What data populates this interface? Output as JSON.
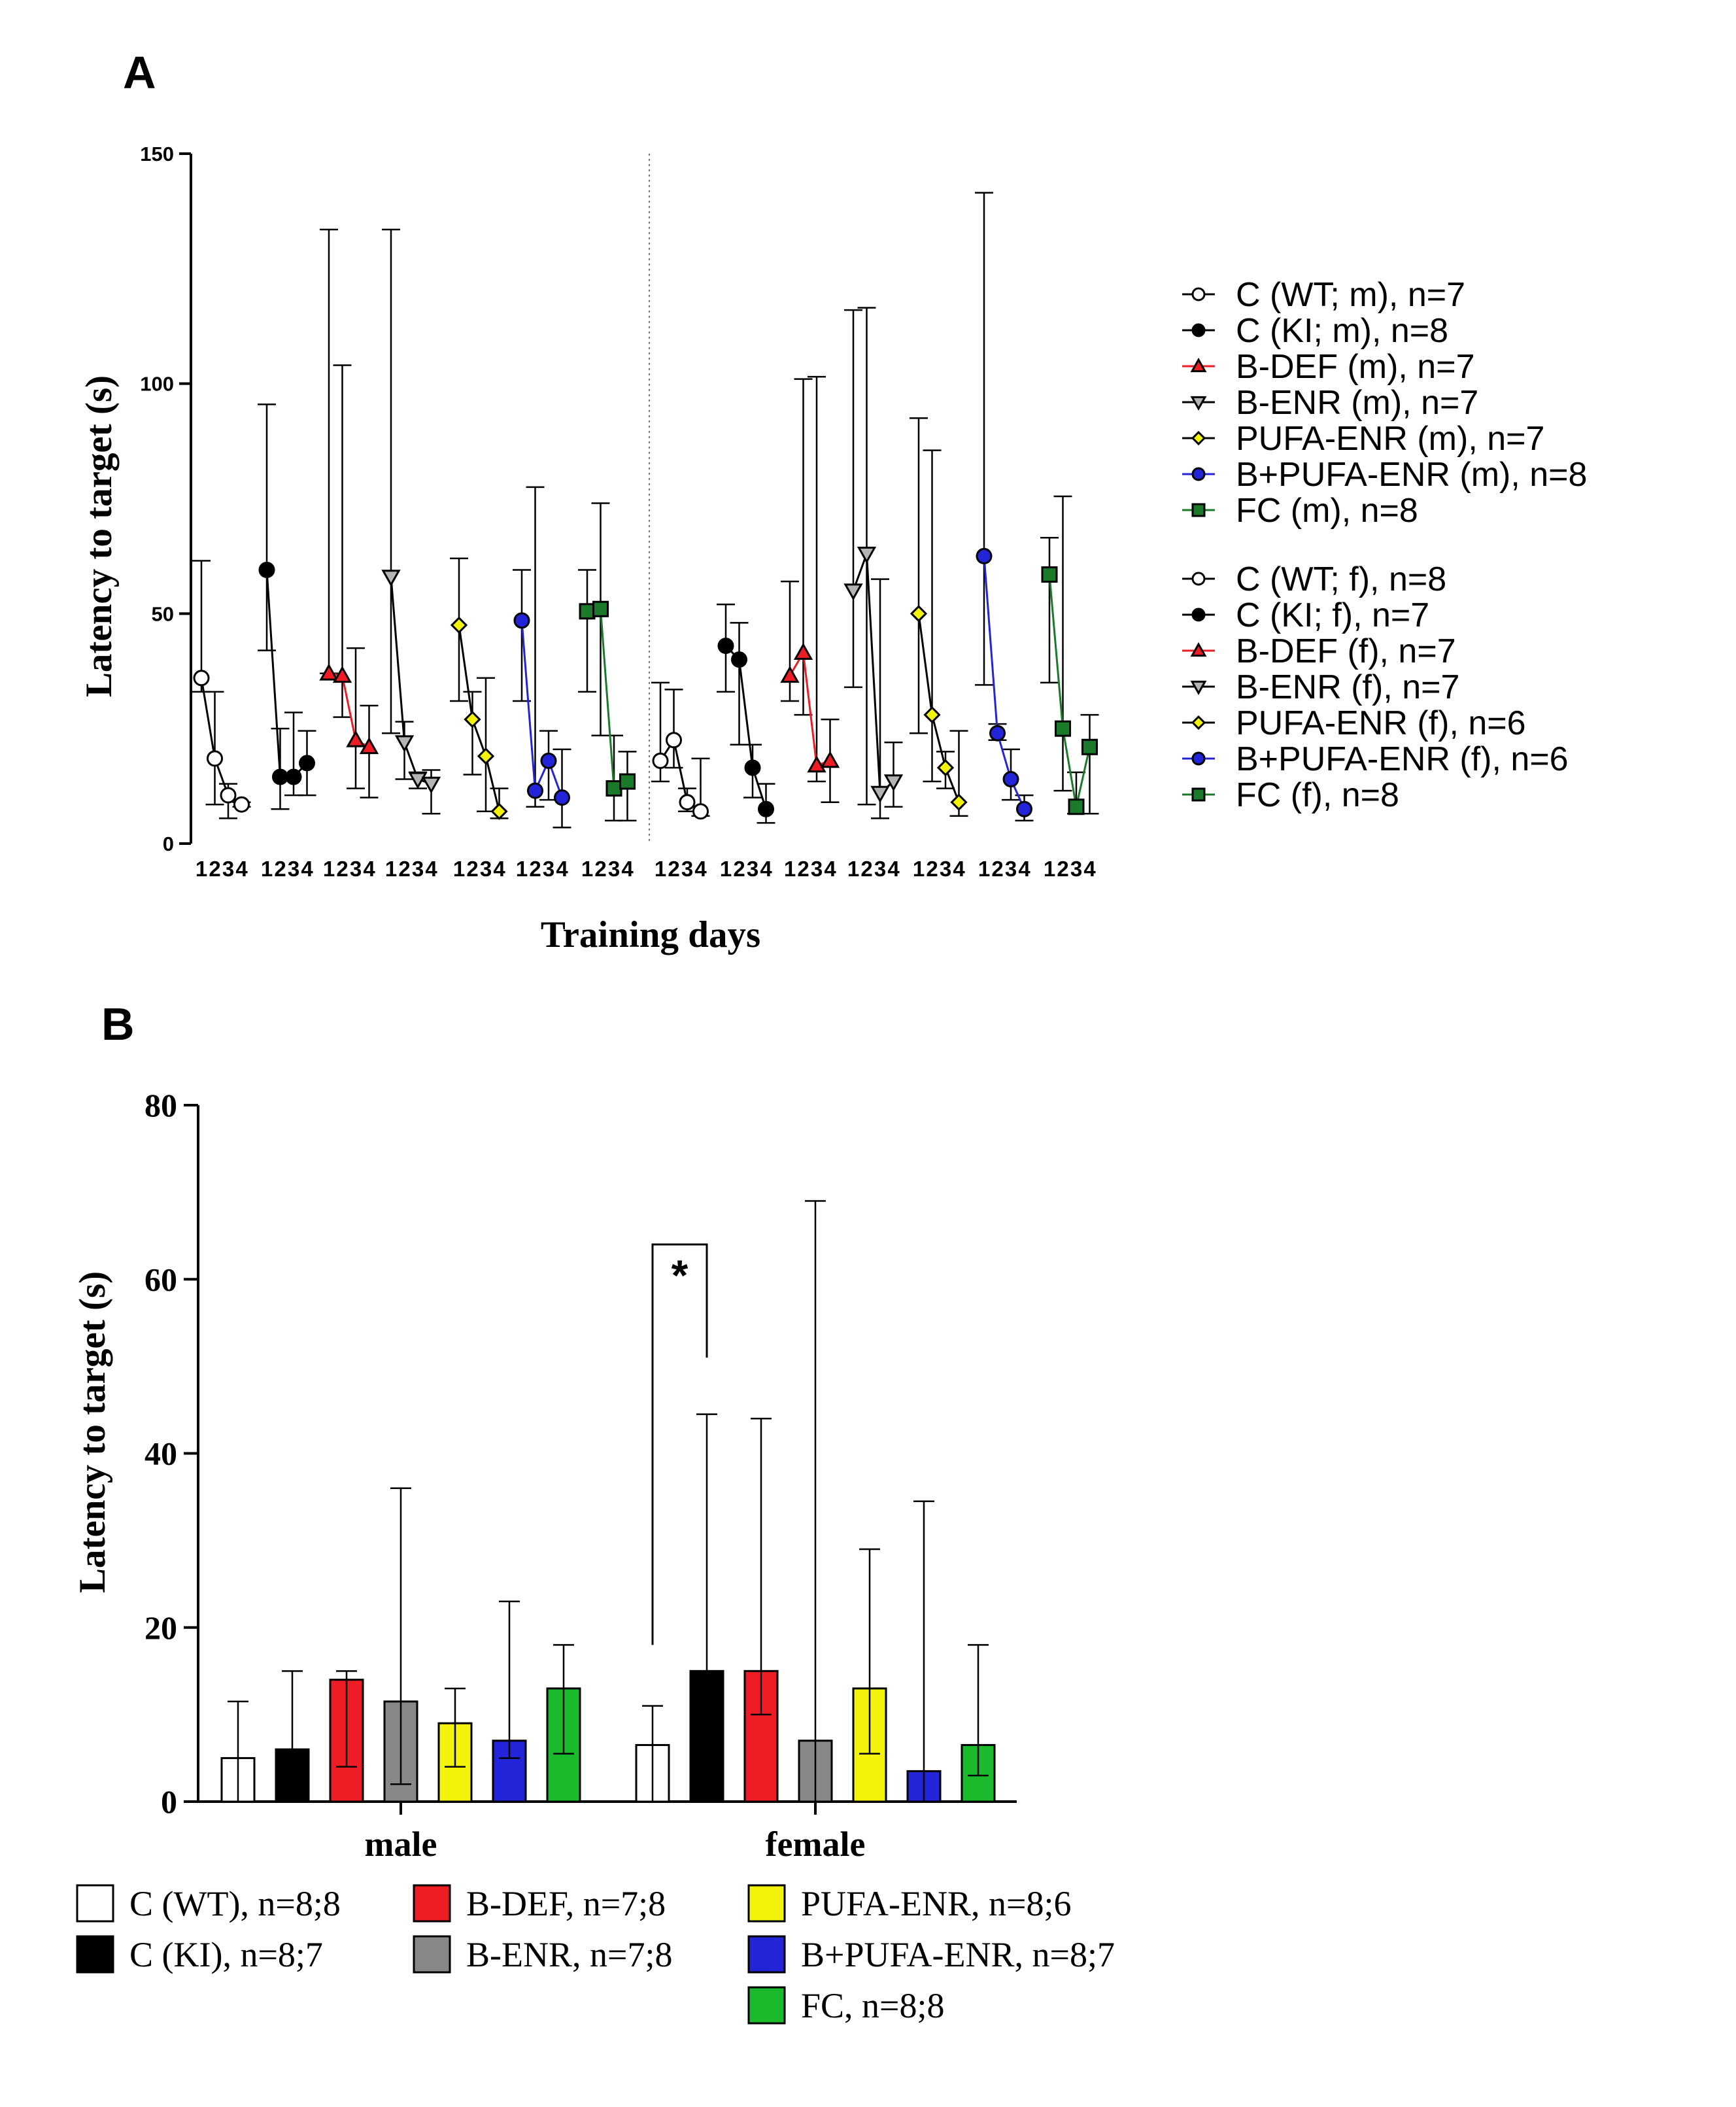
{
  "chart_data": [
    {
      "panel": "A",
      "type": "line",
      "ylabel": "Latency to target (s)",
      "xlabel": "Training days",
      "ylim": [
        0,
        150
      ],
      "yticks": [
        0,
        50,
        100,
        150
      ],
      "day_labels": [
        "1",
        "2",
        "3",
        "4"
      ],
      "separator": "dotted vertical line between male and female groups",
      "colors": {
        "C_WT": "#ffffff",
        "C_KI": "#000000",
        "B_DEF": "#ee1c25",
        "B_ENR": "#b4b4b4",
        "PUFA_ENR": "#f2f20a",
        "B_PUFA_ENR": "#2323d8",
        "FC": "#1a7a2a"
      },
      "legend": [
        {
          "label": "C (WT; m), n=7",
          "marker": "circle",
          "fill": "#ffffff",
          "line": "#000000"
        },
        {
          "label": "C (KI; m), n=8",
          "marker": "circle",
          "fill": "#000000",
          "line": "#000000"
        },
        {
          "label": "B-DEF (m), n=7",
          "marker": "triangle-up",
          "fill": "#ee1c25",
          "line": "#ee1c25"
        },
        {
          "label": "B-ENR (m), n=7",
          "marker": "triangle-down",
          "fill": "#b4b4b4",
          "line": "#000000"
        },
        {
          "label": "PUFA-ENR (m), n=7",
          "marker": "diamond",
          "fill": "#f2f20a",
          "line": "#000000"
        },
        {
          "label": "B+PUFA-ENR (m), n=8",
          "marker": "circle",
          "fill": "#2323d8",
          "line": "#2323d8"
        },
        {
          "label": "FC (m), n=8",
          "marker": "square",
          "fill": "#1a7a2a",
          "line": "#1a7a2a"
        },
        {
          "label": "C (WT; f), n=8",
          "marker": "circle",
          "fill": "#ffffff",
          "line": "#000000"
        },
        {
          "label": "C (KI; f), n=7",
          "marker": "circle",
          "fill": "#000000",
          "line": "#000000"
        },
        {
          "label": "B-DEF (f), n=7",
          "marker": "triangle-up",
          "fill": "#ee1c25",
          "line": "#ee1c25"
        },
        {
          "label": "B-ENR (f), n=7",
          "marker": "triangle-down",
          "fill": "#b4b4b4",
          "line": "#000000"
        },
        {
          "label": "PUFA-ENR (f), n=6",
          "marker": "diamond",
          "fill": "#f2f20a",
          "line": "#000000"
        },
        {
          "label": "B+PUFA-ENR (f), n=6",
          "marker": "circle",
          "fill": "#2323d8",
          "line": "#2323d8"
        },
        {
          "label": "FC (f), n=8",
          "marker": "square",
          "fill": "#1a7a2a",
          "line": "#1a7a2a"
        }
      ],
      "series": [
        {
          "name": "C (WT; m)",
          "values": [
            36,
            18.5,
            10.5,
            8.5
          ],
          "err_upper": [
            61.5,
            33,
            13,
            9
          ],
          "err_lower": [
            33,
            8.5,
            5.5,
            8
          ]
        },
        {
          "name": "C (KI; m)",
          "values": [
            59.5,
            14.5,
            14.5,
            17.5
          ],
          "err_upper": [
            95.5,
            25,
            28.5,
            24.5
          ],
          "err_lower": [
            42,
            7.5,
            10.5,
            10.5
          ]
        },
        {
          "name": "B-DEF (m)",
          "values": [
            37,
            36.5,
            22.5,
            21
          ],
          "err_upper": [
            133.5,
            104,
            42.5,
            30
          ],
          "err_lower": [
            37,
            27.5,
            12,
            10
          ]
        },
        {
          "name": "B-ENR (m)",
          "values": [
            58,
            22,
            14,
            13
          ],
          "err_upper": [
            133.5,
            26.5,
            15.5,
            16
          ],
          "err_lower": [
            24,
            14,
            12,
            6.5
          ]
        },
        {
          "name": "PUFA-ENR (m)",
          "values": [
            47.5,
            27,
            19,
            7
          ],
          "err_upper": [
            62,
            33,
            36,
            12
          ],
          "err_lower": [
            31,
            15,
            7,
            5.5
          ]
        },
        {
          "name": "B+PUFA-ENR (m)",
          "values": [
            48.5,
            11.5,
            18,
            10
          ],
          "err_upper": [
            59.5,
            77.5,
            24.5,
            20.5
          ],
          "err_lower": [
            31,
            8,
            9.5,
            3.5
          ]
        },
        {
          "name": "FC (m)",
          "values": [
            50.5,
            51,
            12,
            13.5
          ],
          "err_upper": [
            59.5,
            74,
            23.5,
            20
          ],
          "err_lower": [
            33,
            23.5,
            5,
            5
          ]
        },
        {
          "name": "C (WT; f)",
          "values": [
            18,
            22.5,
            9,
            7
          ],
          "err_upper": [
            35,
            33.5,
            12,
            18.5
          ],
          "err_lower": [
            13.5,
            16.5,
            7,
            6
          ]
        },
        {
          "name": "C (KI; f)",
          "values": [
            43,
            40,
            16.5,
            7.5
          ],
          "err_upper": [
            52,
            48,
            21.5,
            13
          ],
          "err_lower": [
            33,
            21.5,
            10,
            4.5
          ]
        },
        {
          "name": "B-DEF (f)",
          "values": [
            36.5,
            41.5,
            17,
            18
          ],
          "err_upper": [
            57,
            101,
            101.5,
            27
          ],
          "err_lower": [
            31,
            28,
            13.5,
            9
          ]
        },
        {
          "name": "B-ENR (f)",
          "values": [
            55,
            63,
            11,
            13.5
          ],
          "err_upper": [
            116,
            116.5,
            57.5,
            22
          ],
          "err_lower": [
            34,
            8.5,
            5.5,
            8
          ]
        },
        {
          "name": "PUFA-ENR (f)",
          "values": [
            50,
            28,
            16.5,
            9
          ],
          "err_upper": [
            92.5,
            85.5,
            20,
            24.5
          ],
          "err_lower": [
            24,
            13.5,
            12,
            6
          ]
        },
        {
          "name": "B+PUFA-ENR (f)",
          "values": [
            62.5,
            24,
            14,
            7.5
          ],
          "err_upper": [
            141.5,
            26,
            20.5,
            10.5
          ],
          "err_lower": [
            34.5,
            22.5,
            9.5,
            5
          ]
        },
        {
          "name": "FC (f)",
          "values": [
            58.5,
            25,
            8,
            21
          ],
          "err_upper": [
            66.5,
            75.5,
            15.5,
            28
          ],
          "err_lower": [
            35,
            11.5,
            6.5,
            6.5
          ]
        }
      ]
    },
    {
      "panel": "B",
      "type": "bar",
      "ylabel": "Latency to target (s)",
      "ylim": [
        0,
        80
      ],
      "yticks": [
        0,
        20,
        40,
        60,
        80
      ],
      "categories": [
        "male",
        "female"
      ],
      "significance": {
        "label": "*",
        "between": [
          "C (WT)",
          "C (KI)"
        ],
        "category": "female"
      },
      "series": [
        {
          "name": "C (WT)",
          "legend": "C (WT), n=8;8",
          "color": "#ffffff",
          "values": [
            5,
            6.5
          ],
          "err_upper": [
            11.5,
            11
          ],
          "err_lower": [
            0,
            0
          ]
        },
        {
          "name": "C (KI)",
          "legend": "C (KI), n=8;7",
          "color": "#000000",
          "values": [
            6,
            15
          ],
          "err_upper": [
            15,
            44.5
          ],
          "err_lower": [
            0,
            0
          ]
        },
        {
          "name": "B-DEF",
          "legend": "B-DEF, n=7;8",
          "color": "#ee1c25",
          "values": [
            14,
            15
          ],
          "err_upper": [
            15,
            44
          ],
          "err_lower": [
            4,
            10
          ]
        },
        {
          "name": "B-ENR",
          "legend": "B-ENR, n=7;8",
          "color": "#888888",
          "values": [
            11.5,
            7
          ],
          "err_upper": [
            36,
            69
          ],
          "err_lower": [
            2,
            0
          ]
        },
        {
          "name": "PUFA-ENR",
          "legend": "PUFA-ENR, n=8;6",
          "color": "#f2f20a",
          "values": [
            9,
            13
          ],
          "err_upper": [
            13,
            29
          ],
          "err_lower": [
            4,
            5.5
          ]
        },
        {
          "name": "B+PUFA-ENR",
          "legend": "B+PUFA-ENR, n=8;7",
          "color": "#2323d8",
          "values": [
            7,
            3.5
          ],
          "err_upper": [
            23,
            34.5
          ],
          "err_lower": [
            5,
            0
          ]
        },
        {
          "name": "FC",
          "legend": "FC, n=8;8",
          "color": "#1aba2c",
          "values": [
            13,
            6.5
          ],
          "err_upper": [
            18,
            18
          ],
          "err_lower": [
            5.5,
            3
          ]
        }
      ]
    }
  ],
  "labels": {
    "panel_a": "A",
    "panel_b": "B"
  }
}
